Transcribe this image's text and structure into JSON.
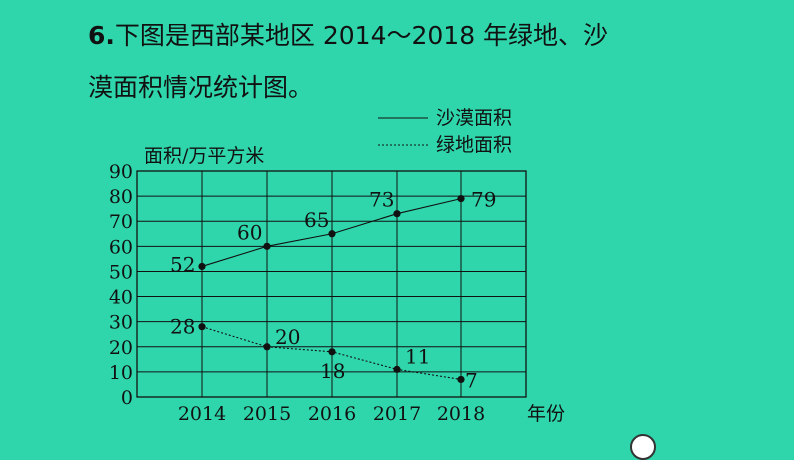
{
  "question": {
    "number": "6.",
    "text_line1": "下图是西部某地区 2014～2018 年绿地、沙",
    "text_line2": "漠面积情况统计图。"
  },
  "chart_data": {
    "type": "line",
    "ylabel": "面积/万平方米",
    "xlabel": "年份",
    "categories": [
      "2014",
      "2015",
      "2016",
      "2017",
      "2018"
    ],
    "y_ticks": [
      "0",
      "10",
      "20",
      "30",
      "40",
      "50",
      "60",
      "70",
      "80",
      "90"
    ],
    "ylim": [
      0,
      90
    ],
    "grid": true,
    "legend_position": "top-right",
    "series": [
      {
        "name": "沙漠面积",
        "style": "solid",
        "values": [
          52,
          60,
          65,
          73,
          79
        ],
        "labels": [
          "52",
          "60",
          "65",
          "73",
          "79"
        ]
      },
      {
        "name": "绿地面积",
        "style": "dotted",
        "values": [
          28,
          20,
          18,
          11,
          7
        ],
        "labels": [
          "28",
          "20",
          "18",
          "11",
          "7"
        ]
      }
    ]
  }
}
